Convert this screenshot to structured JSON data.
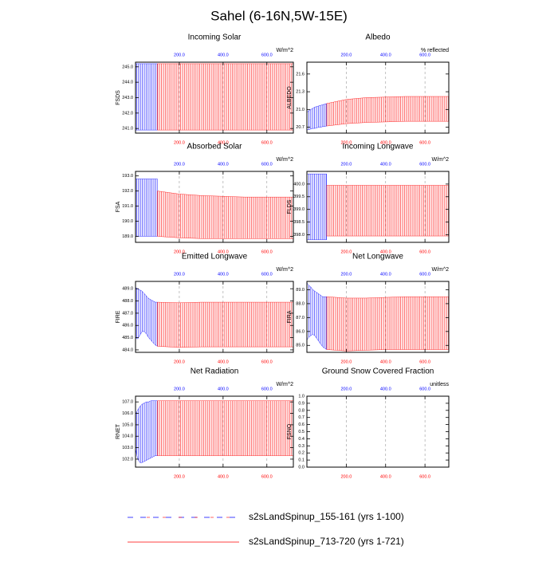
{
  "title": "Sahel (6-16N,5W-15E)",
  "legend": [
    {
      "name": "s2sLandSpinup_155-161 (yrs 1-100)",
      "color": "#0000ff"
    },
    {
      "name": "s2sLandSpinup_713-720 (yrs 1-721)",
      "color": "#ff0000"
    }
  ],
  "chart_data": [
    {
      "type": "range",
      "title": "Incoming Solar",
      "y_label": "FSDS",
      "units": "W/m^2",
      "xlim": [
        0,
        721
      ],
      "xticks": [
        {
          "value": 200,
          "label": "200.0"
        },
        {
          "value": 400,
          "label": "400.0"
        },
        {
          "value": 600,
          "label": "600.0"
        }
      ],
      "x2ticks": [
        {
          "value": 200,
          "label": "200.0"
        },
        {
          "value": 400,
          "label": "400.0"
        },
        {
          "value": 600,
          "label": "600.0"
        }
      ],
      "ylim": [
        240.7,
        245.3
      ],
      "yticks": [
        {
          "value": 241,
          "label": "241.0"
        },
        {
          "value": 242,
          "label": "242.0"
        },
        {
          "value": 243,
          "label": "243.0"
        },
        {
          "value": 244,
          "label": "244.0"
        },
        {
          "value": 245,
          "label": "245.0"
        }
      ],
      "grid": true,
      "series": [
        {
          "x": [
            0,
            10,
            20,
            30,
            40,
            50,
            60,
            70,
            80,
            90,
            100
          ],
          "upper": [
            245.2,
            245.2,
            245.2,
            245.2,
            245.2,
            245.2,
            245.2,
            245.2,
            245.2,
            245.2,
            245.2
          ],
          "lower": [
            240.9,
            240.9,
            240.9,
            240.9,
            240.9,
            240.9,
            240.9,
            240.9,
            240.9,
            240.9,
            240.9
          ]
        },
        {
          "x": [
            100,
            200,
            300,
            400,
            500,
            600,
            721
          ],
          "upper": [
            245.2,
            245.2,
            245.2,
            245.2,
            245.2,
            245.2,
            245.2
          ],
          "lower": [
            240.9,
            240.9,
            240.9,
            240.9,
            240.9,
            240.9,
            240.9
          ]
        }
      ]
    },
    {
      "type": "range",
      "title": "Albedo",
      "y_label": "ALBEDO",
      "units": "% reflected",
      "xlim": [
        0,
        721
      ],
      "xticks": [
        {
          "value": 200,
          "label": "200.0"
        },
        {
          "value": 400,
          "label": "400.0"
        },
        {
          "value": 600,
          "label": "600.0"
        }
      ],
      "x2ticks": [
        {
          "value": 200,
          "label": "200.0"
        },
        {
          "value": 400,
          "label": "400.0"
        },
        {
          "value": 600,
          "label": "600.0"
        }
      ],
      "ylim": [
        20.6,
        21.8
      ],
      "yticks": [
        20.7,
        {
          "value": 21,
          "label": "21.0"
        },
        21.3,
        21.6
      ],
      "grid": true,
      "series": [
        {
          "x": [
            0,
            10,
            20,
            30,
            40,
            50,
            60,
            70,
            80,
            90,
            100
          ],
          "upper": [
            20.95,
            20.98,
            21.0,
            21.02,
            21.04,
            21.05,
            21.06,
            21.07,
            21.08,
            21.09,
            21.1
          ],
          "lower": [
            20.66,
            20.66,
            20.67,
            20.68,
            20.68,
            20.69,
            20.7,
            20.7,
            20.71,
            20.71,
            20.72
          ]
        },
        {
          "x": [
            100,
            200,
            300,
            400,
            500,
            600,
            721
          ],
          "upper": [
            21.1,
            21.17,
            21.2,
            21.21,
            21.22,
            21.22,
            21.22
          ],
          "lower": [
            20.72,
            20.76,
            20.78,
            20.79,
            20.8,
            20.8,
            20.8
          ]
        }
      ]
    },
    {
      "type": "range",
      "title": "Absorbed Solar",
      "y_label": "FSA",
      "units": "W/m^2",
      "xlim": [
        0,
        721
      ],
      "xticks": [
        {
          "value": 200,
          "label": "200.0"
        },
        {
          "value": 400,
          "label": "400.0"
        },
        {
          "value": 600,
          "label": "600.0"
        }
      ],
      "x2ticks": [
        {
          "value": 200,
          "label": "200.0"
        },
        {
          "value": 400,
          "label": "400.0"
        },
        {
          "value": 600,
          "label": "600.0"
        }
      ],
      "ylim": [
        188.6,
        193.3
      ],
      "yticks": [
        {
          "value": 189,
          "label": "189.0"
        },
        {
          "value": 190,
          "label": "190.0"
        },
        {
          "value": 191,
          "label": "191.0"
        },
        {
          "value": 192,
          "label": "192.0"
        },
        {
          "value": 193,
          "label": "193.0"
        }
      ],
      "grid": true,
      "series": [
        {
          "x": [
            0,
            10,
            20,
            30,
            40,
            50,
            60,
            70,
            80,
            90,
            100
          ],
          "upper": [
            192.8,
            192.8,
            192.8,
            192.8,
            192.8,
            192.8,
            192.8,
            192.8,
            192.8,
            192.8,
            192.8
          ],
          "lower": [
            189.0,
            189.0,
            189.0,
            189.0,
            189.0,
            189.0,
            189.0,
            189.0,
            189.0,
            189.0,
            189.0
          ]
        },
        {
          "x": [
            100,
            200,
            300,
            400,
            500,
            600,
            721
          ],
          "upper": [
            192.0,
            191.8,
            191.7,
            191.65,
            191.6,
            191.6,
            191.6
          ],
          "lower": [
            189.0,
            188.9,
            188.85,
            188.85,
            188.85,
            188.85,
            188.85
          ]
        }
      ]
    },
    {
      "type": "range",
      "title": "Incoming Longwave",
      "y_label": "FLDS",
      "units": "W/m^2",
      "xlim": [
        0,
        721
      ],
      "xticks": [
        {
          "value": 200,
          "label": "200.0"
        },
        {
          "value": 400,
          "label": "400.0"
        },
        {
          "value": 600,
          "label": "600.0"
        }
      ],
      "x2ticks": [
        {
          "value": 200,
          "label": "200.0"
        },
        {
          "value": 400,
          "label": "400.0"
        },
        {
          "value": 600,
          "label": "600.0"
        }
      ],
      "ylim": [
        397.7,
        400.5
      ],
      "yticks": [
        {
          "value": 398,
          "label": "398.0"
        },
        398.5,
        {
          "value": 399,
          "label": "399.0"
        },
        399.5,
        {
          "value": 400,
          "label": "400.0"
        }
      ],
      "grid": true,
      "series": [
        {
          "x": [
            0,
            10,
            20,
            30,
            40,
            50,
            60,
            70,
            80,
            90,
            100
          ],
          "upper": [
            400.4,
            400.4,
            400.4,
            400.4,
            400.4,
            400.4,
            400.4,
            400.4,
            400.4,
            400.4,
            400.4
          ],
          "lower": [
            397.8,
            397.8,
            397.8,
            397.8,
            397.8,
            397.8,
            397.8,
            397.8,
            397.8,
            397.8,
            397.8
          ]
        },
        {
          "x": [
            100,
            200,
            300,
            400,
            500,
            600,
            721
          ],
          "upper": [
            399.95,
            399.95,
            399.95,
            399.95,
            399.95,
            399.95,
            399.95
          ],
          "lower": [
            397.95,
            397.95,
            397.95,
            397.95,
            397.95,
            397.95,
            397.95
          ]
        }
      ]
    },
    {
      "type": "range",
      "title": "Emitted Longwave",
      "y_label": "FIRE",
      "units": "W/m^2",
      "xlim": [
        0,
        721
      ],
      "xticks": [
        {
          "value": 200,
          "label": "200.0"
        },
        {
          "value": 400,
          "label": "400.0"
        },
        {
          "value": 600,
          "label": "600.0"
        }
      ],
      "x2ticks": [
        {
          "value": 200,
          "label": "200.0"
        },
        {
          "value": 400,
          "label": "400.0"
        },
        {
          "value": 600,
          "label": "600.0"
        }
      ],
      "ylim": [
        483.8,
        489.6
      ],
      "yticks": [
        {
          "value": 484,
          "label": "484.0"
        },
        {
          "value": 485,
          "label": "485.0"
        },
        {
          "value": 486,
          "label": "486.0"
        },
        {
          "value": 487,
          "label": "487.0"
        },
        {
          "value": 488,
          "label": "488.0"
        },
        {
          "value": 489,
          "label": "489.0"
        }
      ],
      "grid": true,
      "series": [
        {
          "x": [
            0,
            10,
            20,
            30,
            40,
            50,
            60,
            70,
            80,
            90,
            100
          ],
          "upper": [
            489.1,
            489.0,
            488.9,
            488.8,
            488.6,
            488.4,
            488.2,
            488.1,
            488.0,
            487.9,
            487.9
          ],
          "lower": [
            485.0,
            484.9,
            485.2,
            485.5,
            485.5,
            485.3,
            485.0,
            484.8,
            484.6,
            484.4,
            484.3
          ]
        },
        {
          "x": [
            100,
            200,
            300,
            400,
            500,
            600,
            721
          ],
          "upper": [
            487.9,
            487.85,
            487.9,
            487.9,
            487.9,
            487.9,
            487.9
          ],
          "lower": [
            484.3,
            484.2,
            484.25,
            484.25,
            484.25,
            484.25,
            484.25
          ]
        }
      ]
    },
    {
      "type": "range",
      "title": "Net Longwave",
      "y_label": "FIRA",
      "units": "W/m^2",
      "xlim": [
        0,
        721
      ],
      "xticks": [
        {
          "value": 200,
          "label": "200.0"
        },
        {
          "value": 400,
          "label": "400.0"
        },
        {
          "value": 600,
          "label": "600.0"
        }
      ],
      "x2ticks": [
        {
          "value": 200,
          "label": "200.0"
        },
        {
          "value": 400,
          "label": "400.0"
        },
        {
          "value": 600,
          "label": "600.0"
        }
      ],
      "ylim": [
        84.5,
        89.6
      ],
      "yticks": [
        {
          "value": 85,
          "label": "85.0"
        },
        {
          "value": 86,
          "label": "86.0"
        },
        {
          "value": 87,
          "label": "87.0"
        },
        {
          "value": 88,
          "label": "88.0"
        },
        {
          "value": 89,
          "label": "89.0"
        }
      ],
      "grid": true,
      "series": [
        {
          "x": [
            0,
            10,
            20,
            30,
            40,
            50,
            60,
            70,
            80,
            90,
            100
          ],
          "upper": [
            89.5,
            89.3,
            89.2,
            89.0,
            88.9,
            88.8,
            88.7,
            88.6,
            88.5,
            88.5,
            88.5
          ],
          "lower": [
            85.4,
            85.6,
            85.7,
            85.8,
            85.7,
            85.5,
            85.3,
            85.1,
            84.9,
            84.8,
            84.7
          ]
        },
        {
          "x": [
            100,
            200,
            300,
            400,
            500,
            600,
            721
          ],
          "upper": [
            88.5,
            88.4,
            88.4,
            88.45,
            88.5,
            88.5,
            88.5
          ],
          "lower": [
            84.7,
            84.6,
            84.65,
            84.7,
            84.7,
            84.7,
            84.7
          ]
        }
      ]
    },
    {
      "type": "range",
      "title": "Net Radiation",
      "y_label": "RNET",
      "units": "W/m^2",
      "xlim": [
        0,
        721
      ],
      "xticks": [
        {
          "value": 200,
          "label": "200.0"
        },
        {
          "value": 400,
          "label": "400.0"
        },
        {
          "value": 600,
          "label": "600.0"
        }
      ],
      "x2ticks": [
        {
          "value": 200,
          "label": "200.0"
        },
        {
          "value": 400,
          "label": "400.0"
        },
        {
          "value": 600,
          "label": "600.0"
        }
      ],
      "ylim": [
        101.3,
        107.5
      ],
      "yticks": [
        {
          "value": 102,
          "label": "102.0"
        },
        {
          "value": 103,
          "label": "103.0"
        },
        {
          "value": 104,
          "label": "104.0"
        },
        {
          "value": 105,
          "label": "105.0"
        },
        {
          "value": 106,
          "label": "106.0"
        },
        {
          "value": 107,
          "label": "107.0"
        }
      ],
      "grid": true,
      "series": [
        {
          "x": [
            0,
            10,
            20,
            30,
            40,
            50,
            60,
            70,
            80,
            90,
            100
          ],
          "upper": [
            105.9,
            106.3,
            106.6,
            106.8,
            106.9,
            107.0,
            107.0,
            107.1,
            107.1,
            107.1,
            107.1
          ],
          "lower": [
            102.9,
            102.0,
            101.7,
            101.7,
            101.8,
            101.9,
            102.0,
            102.1,
            102.2,
            102.3,
            102.3
          ]
        },
        {
          "x": [
            100,
            200,
            300,
            400,
            500,
            600,
            721
          ],
          "upper": [
            107.1,
            107.1,
            107.1,
            107.1,
            107.1,
            107.1,
            107.1
          ],
          "lower": [
            102.3,
            102.3,
            102.3,
            102.3,
            102.3,
            102.3,
            102.3
          ]
        }
      ]
    },
    {
      "type": "range",
      "title": "Ground Snow Covered Fraction",
      "y_label": "FSNO",
      "units": "unitless",
      "xlim": [
        0,
        721
      ],
      "xticks": [
        {
          "value": 200,
          "label": "200.0"
        },
        {
          "value": 400,
          "label": "400.0"
        },
        {
          "value": 600,
          "label": "600.0"
        }
      ],
      "x2ticks": [
        {
          "value": 200,
          "label": "200.0"
        },
        {
          "value": 400,
          "label": "400.0"
        },
        {
          "value": 600,
          "label": "600.0"
        }
      ],
      "ylim": [
        0,
        1
      ],
      "yticks": [
        {
          "value": 0,
          "label": "0.0"
        },
        0.1,
        0.2,
        0.3,
        0.4,
        0.5,
        0.6,
        0.7,
        0.8,
        0.9,
        {
          "value": 1,
          "label": "1.0"
        }
      ],
      "grid": true
    }
  ]
}
